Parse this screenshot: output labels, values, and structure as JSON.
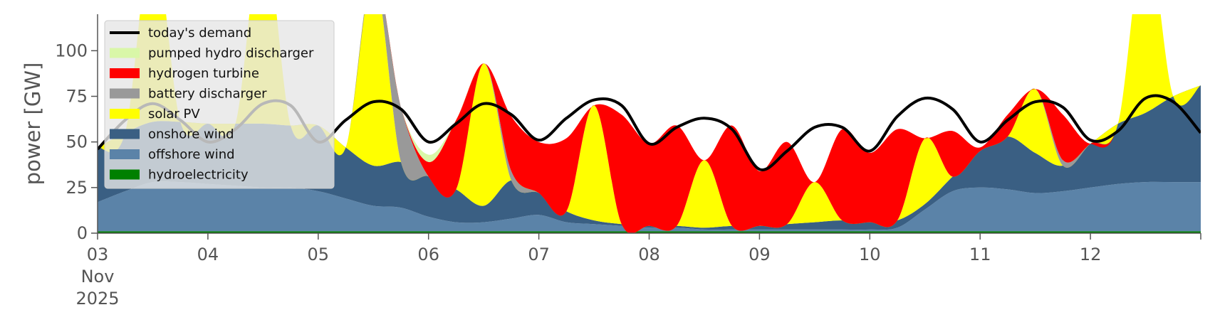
{
  "chart_data": {
    "type": "area",
    "title": "",
    "xlabel": "",
    "ylabel": "power [GW]",
    "ylim": [
      0,
      120
    ],
    "xlim": [
      "2025-11-03T00:00",
      "2025-11-13T00:00"
    ],
    "y_ticks": [
      0,
      25,
      50,
      75,
      100
    ],
    "x_ticks": [
      {
        "date": "2025-11-03",
        "lines": [
          "03",
          "Nov",
          "2025"
        ]
      },
      {
        "date": "2025-11-04",
        "lines": [
          "04"
        ]
      },
      {
        "date": "2025-11-05",
        "lines": [
          "05"
        ]
      },
      {
        "date": "2025-11-06",
        "lines": [
          "06"
        ]
      },
      {
        "date": "2025-11-07",
        "lines": [
          "07"
        ]
      },
      {
        "date": "2025-11-08",
        "lines": [
          "08"
        ]
      },
      {
        "date": "2025-11-09",
        "lines": [
          "09"
        ]
      },
      {
        "date": "2025-11-10",
        "lines": [
          "10"
        ]
      },
      {
        "date": "2025-11-11",
        "lines": [
          "11"
        ]
      },
      {
        "date": "2025-11-12",
        "lines": [
          "12"
        ]
      }
    ],
    "grid": false,
    "legend_position": "top-left",
    "x": [
      "2025-11-03T00:00",
      "2025-11-03T06:00",
      "2025-11-03T12:00",
      "2025-11-03T18:00",
      "2025-11-04T00:00",
      "2025-11-04T06:00",
      "2025-11-04T12:00",
      "2025-11-04T18:00",
      "2025-11-05T00:00",
      "2025-11-05T06:00",
      "2025-11-05T12:00",
      "2025-11-05T18:00",
      "2025-11-06T00:00",
      "2025-11-06T06:00",
      "2025-11-06T12:00",
      "2025-11-06T18:00",
      "2025-11-07T00:00",
      "2025-11-07T06:00",
      "2025-11-07T12:00",
      "2025-11-07T18:00",
      "2025-11-08T00:00",
      "2025-11-08T06:00",
      "2025-11-08T12:00",
      "2025-11-08T18:00",
      "2025-11-09T00:00",
      "2025-11-09T06:00",
      "2025-11-09T12:00",
      "2025-11-09T18:00",
      "2025-11-10T00:00",
      "2025-11-10T06:00",
      "2025-11-10T12:00",
      "2025-11-10T18:00",
      "2025-11-11T00:00",
      "2025-11-11T06:00",
      "2025-11-11T12:00",
      "2025-11-11T18:00",
      "2025-11-12T00:00",
      "2025-11-12T06:00",
      "2025-11-12T12:00",
      "2025-11-12T18:00",
      "2025-11-13T00:00"
    ],
    "series": [
      {
        "name": "hydroelectricity",
        "color": "#008000",
        "values": [
          1,
          1,
          1,
          1,
          1,
          1,
          1,
          1,
          1,
          1,
          1,
          1,
          1,
          1,
          1,
          1,
          1,
          1,
          1,
          1,
          1,
          1,
          1,
          1,
          1,
          1,
          1,
          1,
          1,
          1,
          1,
          1,
          1,
          1,
          1,
          1,
          1,
          1,
          1,
          1,
          1
        ]
      },
      {
        "name": "offshore wind",
        "color": "#5b83a8",
        "values": [
          16,
          22,
          27,
          27,
          26,
          25,
          24,
          24,
          22,
          18,
          14,
          13,
          8,
          5,
          5,
          7,
          9,
          5,
          4,
          3,
          2,
          2,
          1,
          1,
          1,
          1,
          1,
          1,
          1,
          2,
          12,
          22,
          24,
          23,
          21,
          22,
          24,
          26,
          27,
          27,
          27
        ]
      },
      {
        "name": "onshore wind",
        "color": "#3a5f83",
        "values": [
          30,
          32,
          33,
          33,
          33,
          34,
          35,
          34,
          36,
          28,
          22,
          25,
          22,
          18,
          9,
          21,
          12,
          6,
          2,
          1,
          1,
          1,
          1,
          2,
          2,
          3,
          4,
          5,
          4,
          4,
          3,
          8,
          20,
          29,
          22,
          14,
          24,
          33,
          38,
          47,
          53
        ]
      },
      {
        "name": "solar PV",
        "color": "#ffff00",
        "values": [
          0,
          0,
          100,
          0,
          0,
          0,
          105,
          0,
          0,
          0,
          105,
          0,
          0,
          0,
          78,
          0,
          0,
          0,
          63,
          0,
          0,
          0,
          37,
          0,
          0,
          0,
          22,
          0,
          0,
          0,
          36,
          0,
          0,
          0,
          35,
          0,
          0,
          0,
          98,
          0,
          0
        ]
      },
      {
        "name": "battery discharger",
        "color": "#999999",
        "values": [
          0,
          0,
          0,
          0,
          0,
          0,
          0,
          0,
          0,
          0,
          0,
          30,
          0,
          0,
          0,
          5,
          0,
          0,
          0,
          0,
          0,
          0,
          0,
          0,
          0,
          0,
          0,
          0,
          0,
          0,
          0,
          0,
          0,
          0,
          0,
          3,
          0,
          0,
          0,
          0,
          0
        ]
      },
      {
        "name": "hydrogen turbine",
        "color": "#ff0000",
        "values": [
          0,
          0,
          0,
          0,
          0,
          0,
          0,
          0,
          0,
          0,
          0,
          0,
          8,
          38,
          0,
          30,
          28,
          40,
          0,
          60,
          45,
          55,
          0,
          55,
          30,
          45,
          0,
          50,
          38,
          50,
          0,
          25,
          2,
          12,
          0,
          25,
          0,
          0,
          0,
          0,
          0
        ]
      },
      {
        "name": "pumped hydro discharger",
        "color": "#d9f7a8",
        "values": [
          0,
          0,
          0,
          0,
          0,
          0,
          0,
          0,
          0,
          0,
          0,
          0,
          4,
          0,
          0,
          0,
          0,
          0,
          0,
          0,
          0,
          0,
          0,
          0,
          0,
          0,
          0,
          0,
          0,
          0,
          0,
          0,
          0,
          0,
          0,
          0,
          0,
          0,
          0,
          0,
          0
        ]
      },
      {
        "name": "today's demand",
        "color": "#000000",
        "kind": "line",
        "values": [
          46,
          62,
          71,
          62,
          50,
          57,
          71,
          70,
          50,
          62,
          72,
          68,
          50,
          60,
          71,
          65,
          51,
          63,
          73,
          70,
          49,
          58,
          63,
          57,
          35,
          45,
          58,
          58,
          45,
          64,
          74,
          68,
          50,
          62,
          72,
          69,
          51,
          56,
          74,
          72,
          55
        ]
      }
    ],
    "legend": [
      "today's demand",
      "pumped hydro discharger",
      "hydrogen turbine",
      "battery discharger",
      "solar PV",
      "onshore wind",
      "offshore wind",
      "hydroelectricity"
    ]
  }
}
